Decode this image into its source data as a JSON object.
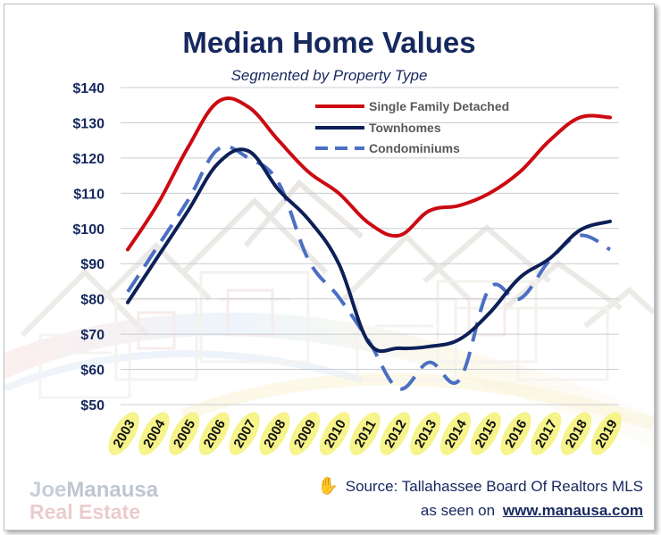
{
  "header": {
    "title": "Median Home Values",
    "subtitle": "Segmented by Property Type"
  },
  "chart_data": {
    "type": "line",
    "title": "Median Home Values",
    "subtitle": "Segmented by Property Type",
    "y_tick_labels": [
      "$50",
      "$60",
      "$70",
      "$80",
      "$90",
      "$100",
      "$110",
      "$120",
      "$130",
      "$140"
    ],
    "y_ticks": [
      50,
      60,
      70,
      80,
      90,
      100,
      110,
      120,
      130,
      140
    ],
    "ylim": [
      50,
      140
    ],
    "grid": true,
    "legend_position": "top-right",
    "categories": [
      "2003",
      "2004",
      "2005",
      "2006",
      "2007",
      "2008",
      "2009",
      "2010",
      "2011",
      "2012",
      "2013",
      "2014",
      "2015",
      "2016",
      "2017",
      "2018",
      "2019"
    ],
    "series": [
      {
        "name": "Single Family Detached",
        "color": "#cc0a12",
        "dash": "solid",
        "values": [
          94,
          107,
          123,
          136,
          134.5,
          125,
          116,
          110,
          101.5,
          98,
          105,
          106.5,
          110,
          116,
          125,
          131.5,
          131.5
        ]
      },
      {
        "name": "Townhomes",
        "color": "#0d1f57",
        "dash": "solid",
        "values": [
          79,
          92,
          105,
          118.5,
          122,
          111,
          102.5,
          90,
          67.5,
          66,
          66.5,
          68.5,
          76,
          86,
          91.5,
          99.5,
          102
        ]
      },
      {
        "name": "Condominiums",
        "color": "#4a6fc3",
        "dash": "dashed",
        "values": [
          82,
          95,
          108,
          122.5,
          120,
          113,
          91,
          80.5,
          68,
          54.5,
          62,
          57,
          83,
          80,
          91,
          98,
          94
        ]
      }
    ]
  },
  "footer": {
    "hand_icon": "hand-icon",
    "source_text": "Source: Tallahassee Board Of Realtors MLS",
    "seen_prefix": "as seen on",
    "seen_url": "www.manausa.com"
  },
  "logo": {
    "line1_a": "Joe",
    "line1_b": "Manausa",
    "line2": "Real Estate"
  }
}
